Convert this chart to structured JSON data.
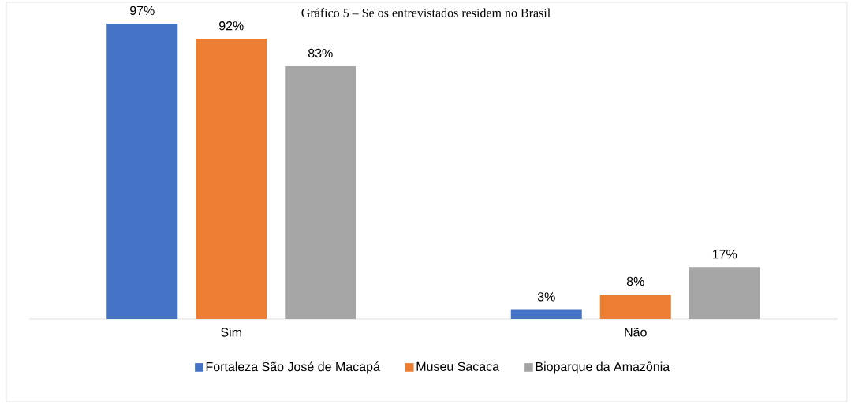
{
  "chart_data": {
    "type": "bar",
    "title": "Gráfico 5 – Se os entrevistados residem no Brasil",
    "categories": [
      "Sim",
      "Não"
    ],
    "series": [
      {
        "name": "Fortaleza São José de Macapá",
        "color": "#4472c4",
        "values": [
          97,
          3
        ],
        "value_labels": [
          "97%",
          "3%"
        ]
      },
      {
        "name": "Museu Sacaca",
        "color": "#ed7d31",
        "values": [
          92,
          8
        ],
        "value_labels": [
          "92%",
          "8%"
        ]
      },
      {
        "name": "Bioparque da Amazônia",
        "color": "#a5a5a5",
        "values": [
          83,
          17
        ],
        "value_labels": [
          "83%",
          "17%"
        ]
      }
    ],
    "legend": "bottom"
  }
}
